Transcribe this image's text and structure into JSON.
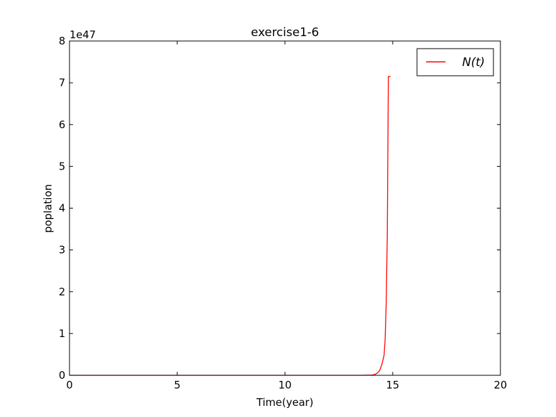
{
  "chart_data": {
    "type": "line",
    "title": "exercise1-6",
    "xlabel": "Time(year)",
    "ylabel": "poplation",
    "xlim": [
      0,
      20
    ],
    "ylim": [
      0,
      8
    ],
    "y_offset_text": "1e47",
    "x_ticks": [
      "0",
      "5",
      "10",
      "15",
      "20"
    ],
    "y_ticks": [
      "0",
      "1",
      "2",
      "3",
      "4",
      "5",
      "6",
      "7",
      "8"
    ],
    "grid": false,
    "legend_position": "upper-right",
    "series": [
      {
        "name": "N(t)",
        "color": "#ff0000",
        "x": [
          0,
          2,
          4,
          6,
          8,
          10,
          12,
          13,
          13.5,
          13.8,
          14.0,
          14.1,
          14.2,
          14.3,
          14.4,
          14.5,
          14.6,
          14.65,
          14.7,
          14.75,
          14.8,
          14.85,
          14.9
        ],
        "y": [
          0,
          0,
          0,
          0,
          0,
          0,
          0,
          0,
          0,
          0.003,
          0.006,
          0.01,
          0.025,
          0.06,
          0.12,
          0.26,
          0.48,
          0.85,
          1.75,
          3.35,
          7.15,
          7.15,
          7.15
        ]
      }
    ]
  }
}
